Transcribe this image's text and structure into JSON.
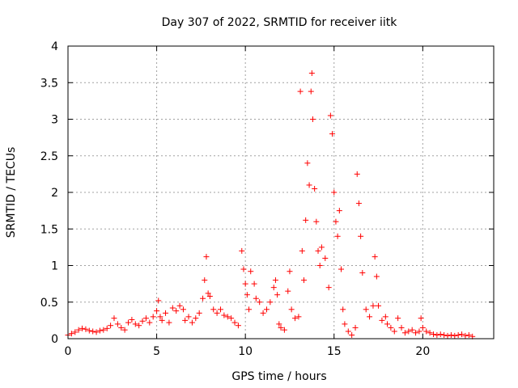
{
  "chart_data": {
    "type": "scatter",
    "title": "Day 307 of 2022, SRMTID for receiver iitk",
    "xlabel": "GPS time / hours",
    "ylabel": "SRMTID / TECUs",
    "xlim": [
      0,
      24
    ],
    "ylim": [
      0,
      4
    ],
    "xticks": [
      0,
      5,
      10,
      15,
      20
    ],
    "yticks": [
      0,
      0.5,
      1,
      1.5,
      2,
      2.5,
      3,
      3.5,
      4
    ],
    "xtick_labels": [
      "0",
      "5",
      "10",
      "15",
      "20"
    ],
    "ytick_labels": [
      "0",
      "0.5",
      "1",
      "1.5",
      "2",
      "2.5",
      "3",
      "3.5",
      "4"
    ],
    "grid": true,
    "marker": "+",
    "color": "#ff0000",
    "series": [
      {
        "name": "SRMTID",
        "points": [
          [
            0.0,
            0.05
          ],
          [
            0.2,
            0.07
          ],
          [
            0.4,
            0.09
          ],
          [
            0.6,
            0.12
          ],
          [
            0.8,
            0.14
          ],
          [
            1.0,
            0.13
          ],
          [
            1.2,
            0.11
          ],
          [
            1.4,
            0.1
          ],
          [
            1.6,
            0.09
          ],
          [
            1.8,
            0.11
          ],
          [
            2.0,
            0.12
          ],
          [
            2.2,
            0.14
          ],
          [
            2.4,
            0.18
          ],
          [
            2.6,
            0.28
          ],
          [
            2.8,
            0.2
          ],
          [
            3.0,
            0.15
          ],
          [
            3.2,
            0.12
          ],
          [
            3.4,
            0.22
          ],
          [
            3.6,
            0.26
          ],
          [
            3.8,
            0.2
          ],
          [
            4.0,
            0.18
          ],
          [
            4.2,
            0.24
          ],
          [
            4.4,
            0.28
          ],
          [
            4.6,
            0.22
          ],
          [
            4.8,
            0.3
          ],
          [
            5.0,
            0.38
          ],
          [
            5.1,
            0.52
          ],
          [
            5.2,
            0.3
          ],
          [
            5.3,
            0.25
          ],
          [
            5.5,
            0.35
          ],
          [
            5.7,
            0.22
          ],
          [
            5.9,
            0.42
          ],
          [
            6.1,
            0.38
          ],
          [
            6.3,
            0.45
          ],
          [
            6.5,
            0.4
          ],
          [
            6.6,
            0.25
          ],
          [
            6.8,
            0.3
          ],
          [
            7.0,
            0.22
          ],
          [
            7.2,
            0.28
          ],
          [
            7.4,
            0.35
          ],
          [
            7.6,
            0.55
          ],
          [
            7.7,
            0.8
          ],
          [
            7.8,
            1.12
          ],
          [
            7.9,
            0.62
          ],
          [
            8.0,
            0.58
          ],
          [
            8.2,
            0.4
          ],
          [
            8.4,
            0.35
          ],
          [
            8.6,
            0.4
          ],
          [
            8.8,
            0.32
          ],
          [
            9.0,
            0.3
          ],
          [
            9.2,
            0.28
          ],
          [
            9.4,
            0.22
          ],
          [
            9.6,
            0.18
          ],
          [
            9.8,
            1.2
          ],
          [
            9.9,
            0.95
          ],
          [
            10.0,
            0.75
          ],
          [
            10.1,
            0.6
          ],
          [
            10.2,
            0.4
          ],
          [
            10.3,
            0.92
          ],
          [
            10.5,
            0.75
          ],
          [
            10.6,
            0.55
          ],
          [
            10.8,
            0.5
          ],
          [
            11.0,
            0.35
          ],
          [
            11.2,
            0.4
          ],
          [
            11.4,
            0.5
          ],
          [
            11.6,
            0.7
          ],
          [
            11.7,
            0.8
          ],
          [
            11.8,
            0.6
          ],
          [
            11.9,
            0.2
          ],
          [
            12.0,
            0.15
          ],
          [
            12.2,
            0.12
          ],
          [
            12.4,
            0.65
          ],
          [
            12.5,
            0.92
          ],
          [
            12.6,
            0.4
          ],
          [
            12.8,
            0.28
          ],
          [
            13.0,
            0.3
          ],
          [
            13.1,
            3.38
          ],
          [
            13.2,
            1.2
          ],
          [
            13.3,
            0.8
          ],
          [
            13.4,
            1.62
          ],
          [
            13.5,
            2.4
          ],
          [
            13.6,
            2.1
          ],
          [
            13.7,
            3.38
          ],
          [
            13.75,
            3.63
          ],
          [
            13.8,
            3.0
          ],
          [
            13.9,
            2.05
          ],
          [
            14.0,
            1.6
          ],
          [
            14.1,
            1.2
          ],
          [
            14.2,
            1.0
          ],
          [
            14.3,
            1.25
          ],
          [
            14.5,
            1.1
          ],
          [
            14.7,
            0.7
          ],
          [
            14.8,
            3.05
          ],
          [
            14.9,
            2.8
          ],
          [
            15.0,
            2.0
          ],
          [
            15.1,
            1.6
          ],
          [
            15.2,
            1.4
          ],
          [
            15.3,
            1.75
          ],
          [
            15.4,
            0.95
          ],
          [
            15.5,
            0.4
          ],
          [
            15.6,
            0.2
          ],
          [
            15.8,
            0.1
          ],
          [
            16.0,
            0.05
          ],
          [
            16.2,
            0.15
          ],
          [
            16.3,
            2.25
          ],
          [
            16.4,
            1.85
          ],
          [
            16.5,
            1.4
          ],
          [
            16.6,
            0.9
          ],
          [
            16.8,
            0.4
          ],
          [
            17.0,
            0.3
          ],
          [
            17.2,
            0.45
          ],
          [
            17.3,
            1.12
          ],
          [
            17.4,
            0.85
          ],
          [
            17.5,
            0.45
          ],
          [
            17.7,
            0.25
          ],
          [
            17.9,
            0.3
          ],
          [
            18.0,
            0.2
          ],
          [
            18.2,
            0.15
          ],
          [
            18.4,
            0.1
          ],
          [
            18.6,
            0.28
          ],
          [
            18.8,
            0.15
          ],
          [
            19.0,
            0.08
          ],
          [
            19.2,
            0.1
          ],
          [
            19.4,
            0.12
          ],
          [
            19.6,
            0.08
          ],
          [
            19.8,
            0.1
          ],
          [
            19.9,
            0.28
          ],
          [
            20.0,
            0.15
          ],
          [
            20.2,
            0.1
          ],
          [
            20.4,
            0.08
          ],
          [
            20.6,
            0.06
          ],
          [
            20.8,
            0.05
          ],
          [
            21.0,
            0.06
          ],
          [
            21.2,
            0.05
          ],
          [
            21.4,
            0.04
          ],
          [
            21.6,
            0.05
          ],
          [
            21.8,
            0.04
          ],
          [
            22.0,
            0.05
          ],
          [
            22.2,
            0.06
          ],
          [
            22.4,
            0.04
          ],
          [
            22.6,
            0.05
          ],
          [
            22.8,
            0.03
          ]
        ]
      }
    ]
  }
}
